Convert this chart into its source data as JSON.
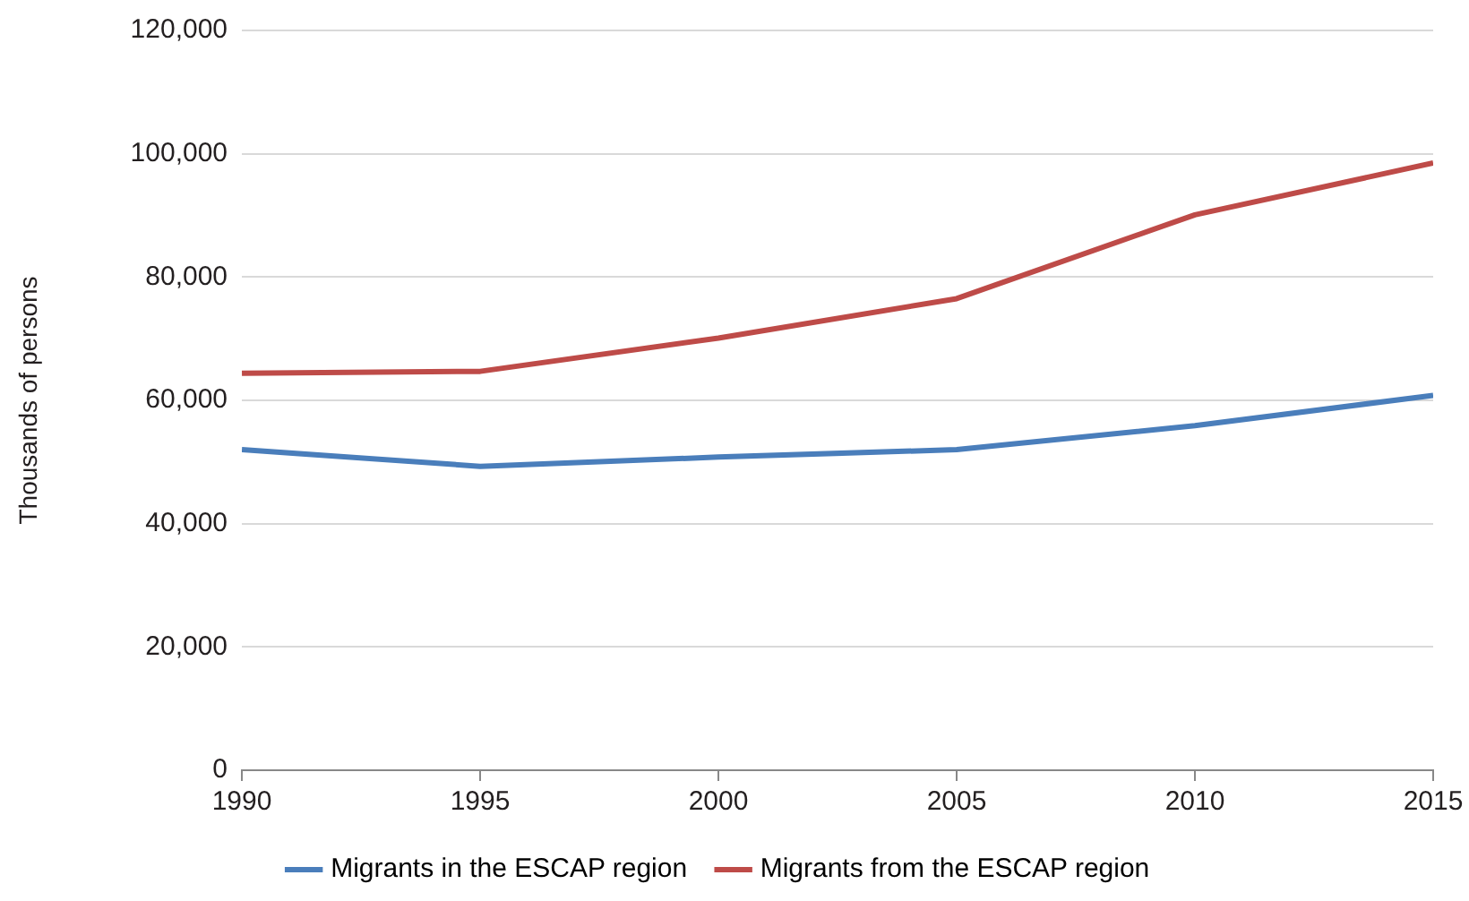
{
  "chart_data": {
    "type": "line",
    "ylabel": "Thousands of persons",
    "x": [
      1990,
      1995,
      2000,
      2005,
      2010,
      2015
    ],
    "series": [
      {
        "name": "Migrants in the ESCAP region",
        "color": "#4a7ebb",
        "values": [
          52000,
          49300,
          50800,
          52000,
          55900,
          60800
        ]
      },
      {
        "name": "Migrants from the ESCAP region",
        "color": "#be4b48",
        "values": [
          64400,
          64700,
          70100,
          76500,
          90100,
          98500
        ]
      }
    ],
    "xlim": [
      1990,
      2015
    ],
    "xticks": [
      1990,
      1995,
      2000,
      2005,
      2010,
      2015
    ],
    "ylim": [
      0,
      120000
    ],
    "yticks": [
      0,
      {
        "value": 20000,
        "label": "20,000"
      },
      {
        "value": 40000,
        "label": "40,000"
      },
      {
        "value": 60000,
        "label": "60,000"
      },
      {
        "value": 80000,
        "label": "80,000"
      },
      {
        "value": 100000,
        "label": "100,000"
      },
      {
        "value": 120000,
        "label": "120,000"
      }
    ],
    "grid": "y",
    "legend": "bottom",
    "marker": "none",
    "line_style": "solid"
  }
}
